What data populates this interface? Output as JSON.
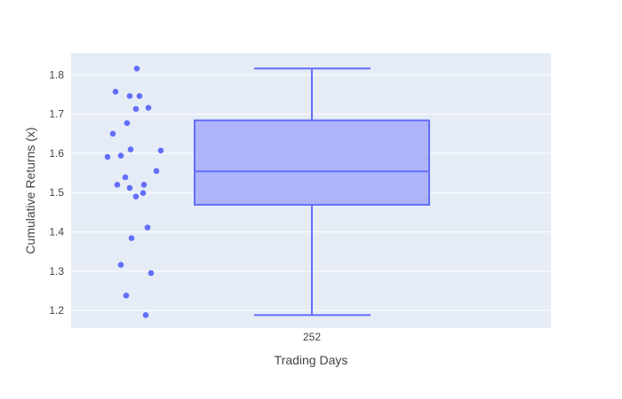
{
  "chart_data": {
    "type": "box",
    "xlabel": "Trading Days",
    "ylabel": "Cumulative Returns (x)",
    "categories": [
      "252"
    ],
    "ylim": [
      1.155,
      1.855
    ],
    "yticks": [
      "1.2",
      "1.3",
      "1.4",
      "1.5",
      "1.6",
      "1.7",
      "1.8"
    ],
    "grid": true,
    "colors": {
      "plot_bg": "#E5ECF6",
      "grid": "#ffffff",
      "box_line": "#636EFA",
      "box_fill": "#A7AEFB",
      "points": "#636EFA"
    },
    "box": {
      "min": 1.188,
      "q1": 1.469,
      "median": 1.554,
      "q3": 1.684,
      "max": 1.816
    },
    "points": [
      1.816,
      1.757,
      1.746,
      1.746,
      1.716,
      1.713,
      1.677,
      1.65,
      1.61,
      1.607,
      1.594,
      1.591,
      1.555,
      1.539,
      1.52,
      1.52,
      1.512,
      1.499,
      1.49,
      1.411,
      1.384,
      1.316,
      1.295,
      1.238,
      1.188
    ]
  }
}
